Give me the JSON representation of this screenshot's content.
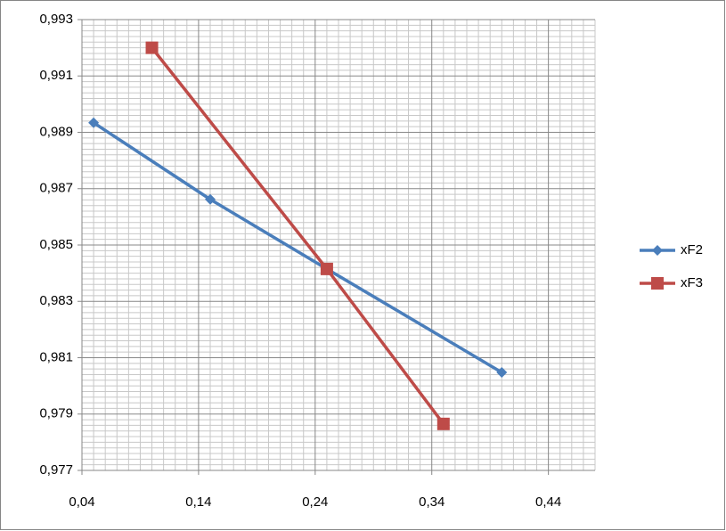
{
  "chart_data": {
    "type": "line",
    "series": [
      {
        "name": "xF2",
        "color": "#4a7ebb",
        "marker": "diamond",
        "x": [
          0.05,
          0.15,
          0.25,
          0.4
        ],
        "values": [
          0.98934,
          0.98662,
          0.98415,
          0.98048
        ]
      },
      {
        "name": "xF3",
        "color": "#be4b48",
        "marker": "square",
        "x": [
          0.1,
          0.25,
          0.35
        ],
        "values": [
          0.992,
          0.98415,
          0.97865
        ]
      }
    ],
    "xlim": [
      0.04,
      0.48
    ],
    "xticks": [
      {
        "value": 0.04,
        "label": "0,04"
      },
      {
        "value": 0.14,
        "label": "0,14"
      },
      {
        "value": 0.24,
        "label": "0,24"
      },
      {
        "value": 0.34,
        "label": "0,34"
      },
      {
        "value": 0.44,
        "label": "0,44"
      }
    ],
    "ylim": [
      0.977,
      0.993
    ],
    "yticks": [
      {
        "value": 0.977,
        "label": "0,977"
      },
      {
        "value": 0.979,
        "label": "0,979"
      },
      {
        "value": 0.981,
        "label": "0,981"
      },
      {
        "value": 0.983,
        "label": "0,983"
      },
      {
        "value": 0.985,
        "label": "0,985"
      },
      {
        "value": 0.987,
        "label": "0,987"
      },
      {
        "value": 0.989,
        "label": "0,989"
      },
      {
        "value": 0.991,
        "label": "0,991"
      },
      {
        "value": 0.993,
        "label": "0,993"
      }
    ],
    "grid": true,
    "minor_grid": true,
    "legend": "right"
  }
}
